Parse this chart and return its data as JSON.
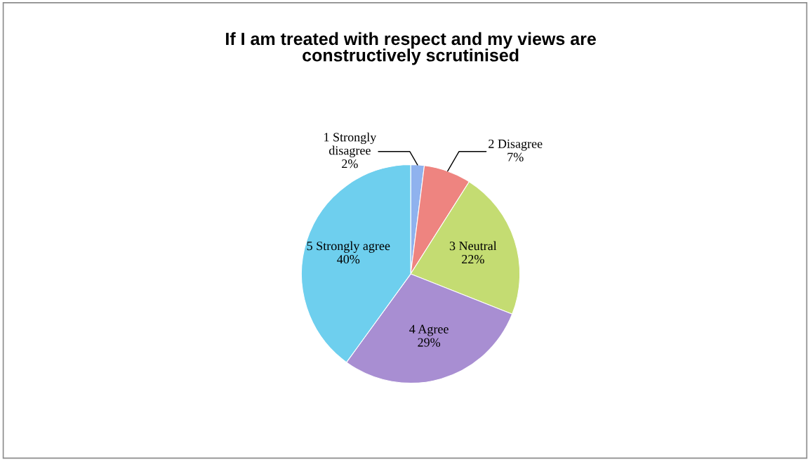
{
  "chart_data": {
    "type": "pie",
    "title": "If I am treated with respect and my views are\nconstructively scrutinised",
    "categories": [
      "1 Strongly\ndisagree",
      "2 Disagree",
      "3 Neutral",
      "4 Agree",
      "5 Strongly agree"
    ],
    "values": [
      2,
      7,
      22,
      29,
      40
    ],
    "value_labels": [
      "2%",
      "7%",
      "22%",
      "29%",
      "40%"
    ],
    "colors": [
      "#8fb2ee",
      "#ee8480",
      "#c4dc72",
      "#a88ed2",
      "#6ecfee"
    ],
    "legend": false
  }
}
